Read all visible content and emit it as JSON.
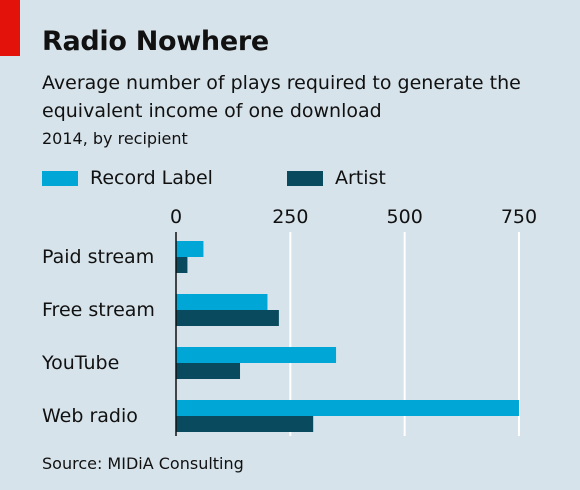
{
  "title": "Radio Nowhere",
  "subtitle": "Average number of plays required to generate the equivalent income of one download",
  "subtitle2": "2014, by recipient",
  "source": "Source: MIDiA Consulting",
  "colors": {
    "record_label": "#00a7d6",
    "artist": "#0a4a5e",
    "accent": "#e3120b",
    "background": "#d6e3ea"
  },
  "chart_data": {
    "type": "bar",
    "orientation": "horizontal",
    "categories": [
      "Paid stream",
      "Free stream",
      "YouTube",
      "Web radio"
    ],
    "series": [
      {
        "name": "Record Label",
        "values": [
          60,
          200,
          350,
          750
        ]
      },
      {
        "name": "Artist",
        "values": [
          25,
          225,
          140,
          300
        ]
      }
    ],
    "xlim": [
      0,
      800
    ],
    "xticks": [
      0,
      250,
      500,
      750
    ],
    "xtick_labels": [
      "0",
      "250",
      "500",
      "750"
    ],
    "grid": true,
    "legend": "top-left"
  }
}
